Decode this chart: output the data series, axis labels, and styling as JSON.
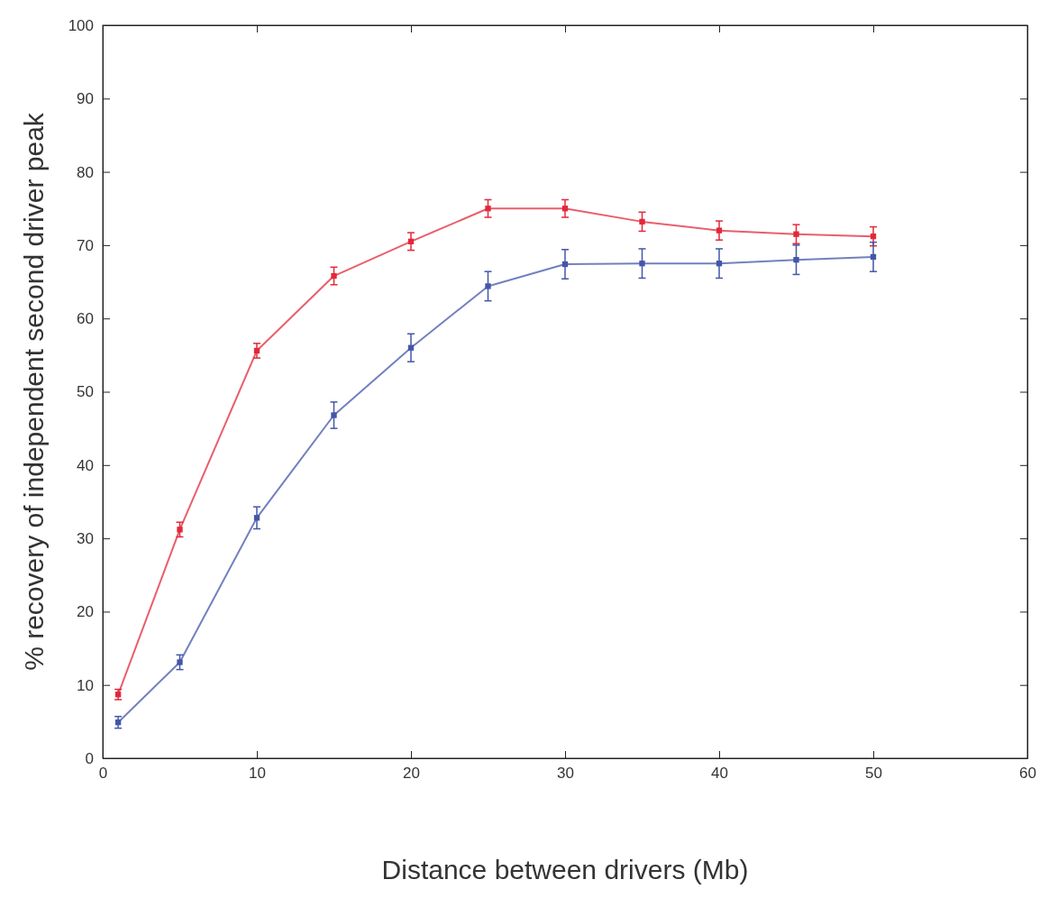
{
  "chart_data": {
    "type": "line",
    "xlabel": "Distance between drivers (Mb)",
    "ylabel": "% recovery of independent second driver peak",
    "x": [
      1,
      5,
      10,
      15,
      20,
      25,
      30,
      35,
      40,
      45,
      50
    ],
    "xlim": [
      0,
      60
    ],
    "xticks": [
      0,
      10,
      20,
      30,
      40,
      50,
      60
    ],
    "ylim": [
      0,
      100
    ],
    "yticks": [
      0,
      10,
      20,
      30,
      40,
      50,
      60,
      70,
      80,
      90,
      100
    ],
    "marker": "square",
    "line_style": "solid",
    "series": [
      {
        "color": "#e2283a",
        "values": [
          8.7,
          31.2,
          55.6,
          65.8,
          70.5,
          75,
          75,
          73.2,
          72,
          71.5,
          71.2
        ],
        "errors": [
          0.7,
          1,
          1,
          1.2,
          1.2,
          1.2,
          1.2,
          1.3,
          1.3,
          1.3,
          1.3
        ]
      },
      {
        "color": "#4356a8",
        "values": [
          4.9,
          13.1,
          32.8,
          46.8,
          56,
          64.4,
          67.4,
          67.5,
          67.5,
          68,
          68.4
        ],
        "errors": [
          0.8,
          1,
          1.5,
          1.8,
          1.9,
          2,
          2,
          2,
          2,
          2,
          2
        ]
      }
    ]
  }
}
